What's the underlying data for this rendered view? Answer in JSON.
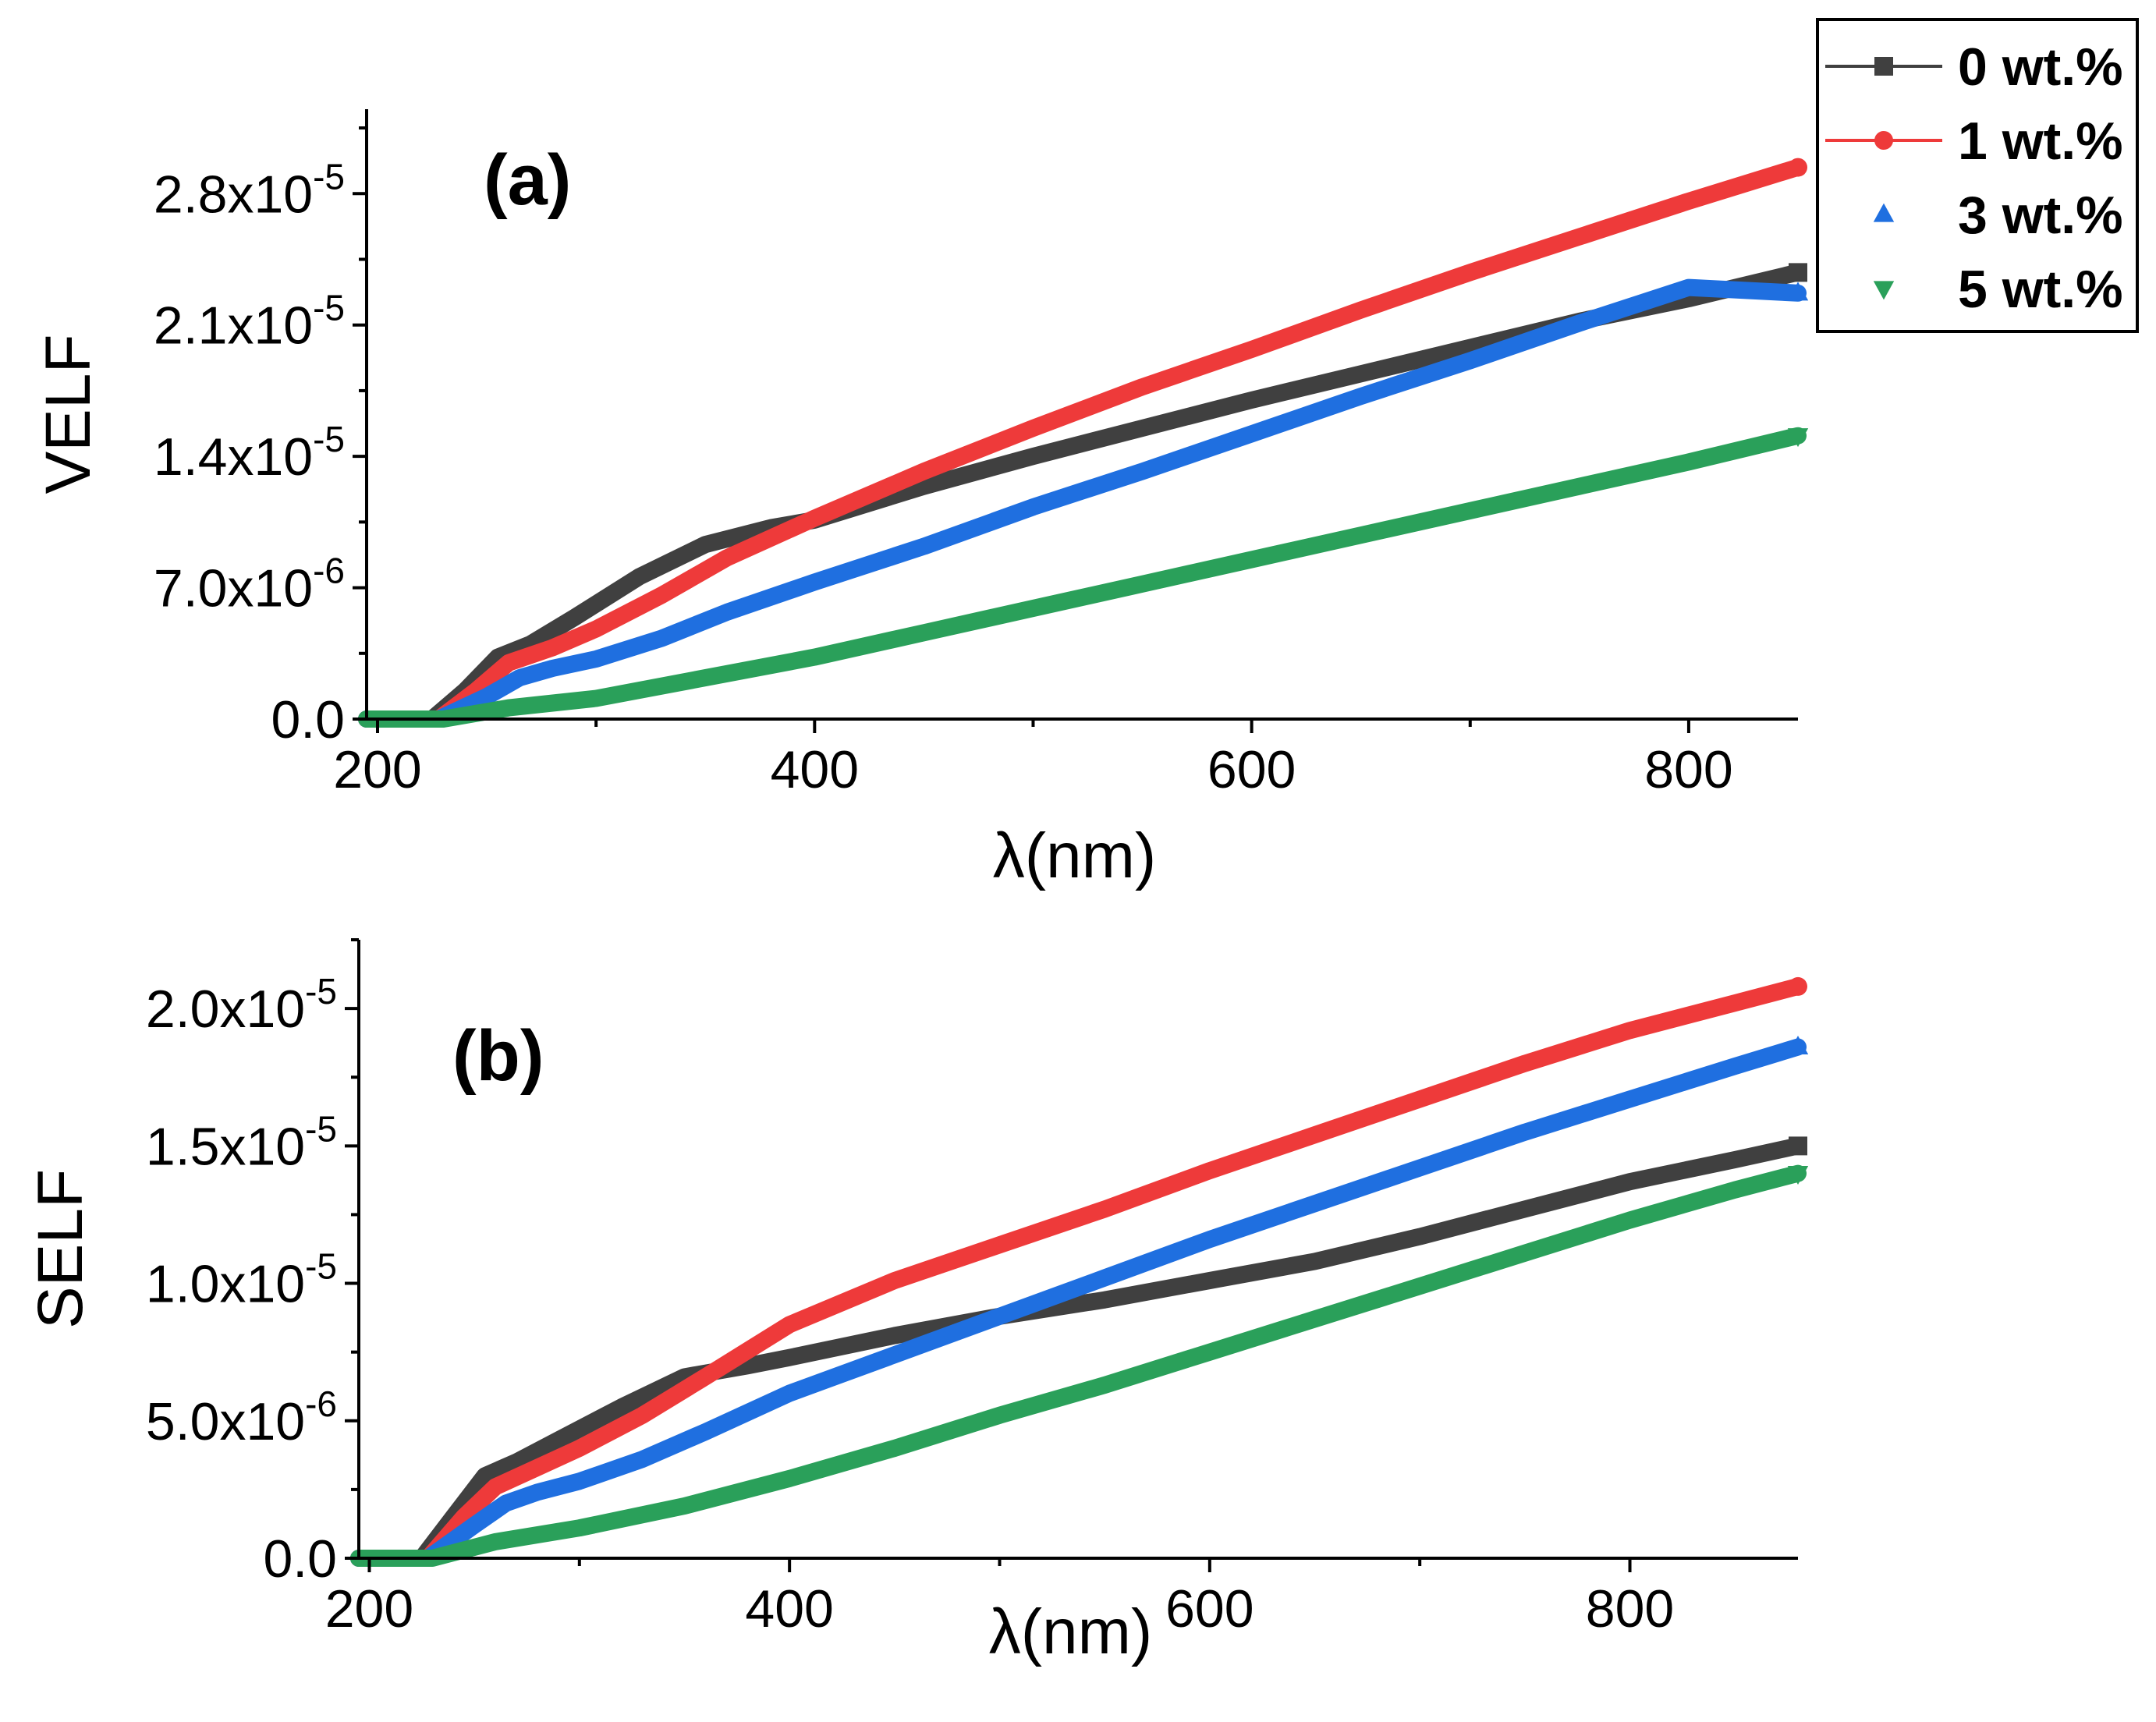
{
  "chart_data": [
    {
      "panel": "a",
      "type": "line",
      "panel_label": "(a)",
      "title": "",
      "xlabel": "λ(nm)",
      "ylabel": "VELF",
      "xlim": [
        195,
        850
      ],
      "ylim": [
        0,
        3.25e-05
      ],
      "xticks": [
        200,
        400,
        600,
        800
      ],
      "xtick_labels": [
        "200",
        "400",
        "600",
        "800"
      ],
      "ytick_labels": [
        {
          "value": 0,
          "mantissa": "0.0",
          "exp": ""
        },
        {
          "value": 7e-06,
          "mantissa": "7.0x10",
          "exp": "-6"
        },
        {
          "value": 1.4e-05,
          "mantissa": "1.4x10",
          "exp": "-5"
        },
        {
          "value": 2.1e-05,
          "mantissa": "2.1x10",
          "exp": "-5"
        },
        {
          "value": 2.8e-05,
          "mantissa": "2.8x10",
          "exp": "-5"
        }
      ],
      "series": [
        {
          "name": "0 wt.%",
          "color": "#404040",
          "marker": "square",
          "x": [
            195,
            225,
            240,
            255,
            270,
            290,
            320,
            350,
            380,
            400,
            450,
            500,
            550,
            600,
            650,
            700,
            750,
            800,
            850
          ],
          "y": [
            0,
            0,
            1.5e-06,
            3.3e-06,
            4e-06,
            5.4e-06,
            7.6e-06,
            9.3e-06,
            1.02e-05,
            1.06e-05,
            1.24e-05,
            1.4e-05,
            1.55e-05,
            1.7e-05,
            1.84e-05,
            1.98e-05,
            2.12e-05,
            2.24e-05,
            2.38e-05
          ]
        },
        {
          "name": "1 wt.%",
          "color": "#ee3a3a",
          "marker": "circle",
          "x": [
            195,
            228,
            245,
            260,
            280,
            300,
            330,
            360,
            400,
            450,
            500,
            550,
            600,
            650,
            700,
            750,
            800,
            850
          ],
          "y": [
            0,
            0,
            1.5e-06,
            3e-06,
            3.8e-06,
            4.8e-06,
            6.6e-06,
            8.6e-06,
            1.07e-05,
            1.32e-05,
            1.55e-05,
            1.77e-05,
            1.97e-05,
            2.18e-05,
            2.38e-05,
            2.57e-05,
            2.76e-05,
            2.94e-05
          ]
        },
        {
          "name": "3 wt.%",
          "color": "#1f6fe0",
          "marker": "triangle-up",
          "x": [
            195,
            228,
            250,
            265,
            280,
            300,
            330,
            360,
            400,
            450,
            500,
            550,
            600,
            650,
            700,
            750,
            800,
            850
          ],
          "y": [
            0,
            0,
            1.2e-06,
            2.2e-06,
            2.7e-06,
            3.2e-06,
            4.3e-06,
            5.7e-06,
            7.3e-06,
            9.2e-06,
            1.13e-05,
            1.32e-05,
            1.52e-05,
            1.72e-05,
            1.91e-05,
            2.11e-05,
            2.3e-05,
            2.27e-05
          ]
        },
        {
          "name": "5 wt.%",
          "color": "#2aa05a",
          "marker": "triangle-down",
          "x": [
            195,
            230,
            260,
            300,
            350,
            400,
            450,
            500,
            550,
            600,
            650,
            700,
            750,
            800,
            850
          ],
          "y": [
            0,
            0,
            6e-07,
            1.1e-06,
            2.2e-06,
            3.3e-06,
            4.6e-06,
            5.9e-06,
            7.2e-06,
            8.5e-06,
            9.8e-06,
            1.11e-05,
            1.24e-05,
            1.37e-05,
            1.51e-05
          ]
        }
      ]
    },
    {
      "panel": "b",
      "type": "line",
      "panel_label": "(b)",
      "title": "",
      "xlabel": "λ(nm)",
      "ylabel": "SELF",
      "xlim": [
        195,
        880
      ],
      "ylim": [
        0,
        2.25e-05
      ],
      "xticks": [
        200,
        400,
        600,
        800
      ],
      "xtick_labels": [
        "200",
        "400",
        "600",
        "800"
      ],
      "ytick_labels": [
        {
          "value": 0,
          "mantissa": "0.0",
          "exp": ""
        },
        {
          "value": 5e-06,
          "mantissa": "5.0x10",
          "exp": "-6"
        },
        {
          "value": 1e-05,
          "mantissa": "1.0x10",
          "exp": "-5"
        },
        {
          "value": 1.5e-05,
          "mantissa": "1.5x10",
          "exp": "-5"
        },
        {
          "value": 2e-05,
          "mantissa": "2.0x10",
          "exp": "-5"
        }
      ],
      "series": [
        {
          "name": "0 wt.%",
          "color": "#404040",
          "marker": "square",
          "x": [
            195,
            225,
            240,
            255,
            270,
            290,
            320,
            350,
            380,
            400,
            450,
            500,
            550,
            600,
            650,
            700,
            750,
            800,
            850,
            880
          ],
          "y": [
            0,
            0,
            1.5e-06,
            3e-06,
            3.5e-06,
            4.3e-06,
            5.5e-06,
            6.6e-06,
            7e-06,
            7.3e-06,
            8.1e-06,
            8.8e-06,
            9.4e-06,
            1.01e-05,
            1.08e-05,
            1.17e-05,
            1.27e-05,
            1.37e-05,
            1.45e-05,
            1.5e-05
          ]
        },
        {
          "name": "1 wt.%",
          "color": "#ee3a3a",
          "marker": "circle",
          "x": [
            195,
            228,
            245,
            260,
            280,
            300,
            330,
            360,
            400,
            450,
            500,
            550,
            600,
            650,
            700,
            750,
            800,
            850,
            880
          ],
          "y": [
            0,
            0,
            1.5e-06,
            2.6e-06,
            3.3e-06,
            4e-06,
            5.2e-06,
            6.6e-06,
            8.5e-06,
            1.01e-05,
            1.14e-05,
            1.27e-05,
            1.41e-05,
            1.54e-05,
            1.67e-05,
            1.8e-05,
            1.92e-05,
            2.02e-05,
            2.08e-05
          ]
        },
        {
          "name": "3 wt.%",
          "color": "#1f6fe0",
          "marker": "triangle-up",
          "x": [
            195,
            228,
            250,
            265,
            280,
            300,
            330,
            360,
            400,
            450,
            500,
            550,
            600,
            650,
            700,
            750,
            800,
            850,
            880
          ],
          "y": [
            0,
            0,
            1.2e-06,
            2e-06,
            2.4e-06,
            2.8e-06,
            3.6e-06,
            4.6e-06,
            6e-06,
            7.4e-06,
            8.8e-06,
            1.02e-05,
            1.16e-05,
            1.29e-05,
            1.42e-05,
            1.55e-05,
            1.67e-05,
            1.79e-05,
            1.86e-05
          ]
        },
        {
          "name": "5 wt.%",
          "color": "#2aa05a",
          "marker": "triangle-down",
          "x": [
            195,
            230,
            260,
            300,
            350,
            400,
            450,
            500,
            550,
            600,
            650,
            700,
            750,
            800,
            850,
            880
          ],
          "y": [
            0,
            0,
            6e-07,
            1.1e-06,
            1.9e-06,
            2.9e-06,
            4e-06,
            5.2e-06,
            6.3e-06,
            7.5e-06,
            8.7e-06,
            9.9e-06,
            1.11e-05,
            1.23e-05,
            1.34e-05,
            1.4e-05
          ]
        }
      ]
    }
  ],
  "legend": {
    "placement": "top-right",
    "entries": [
      {
        "label": "0 wt.%",
        "color": "#404040",
        "marker": "square",
        "line": true
      },
      {
        "label": "1 wt.%",
        "color": "#ee3a3a",
        "marker": "circle",
        "line": true
      },
      {
        "label": "3 wt.%",
        "color": "#1f6fe0",
        "marker": "triangle-up",
        "line": false
      },
      {
        "label": "5 wt.%",
        "color": "#2aa05a",
        "marker": "triangle-down",
        "line": false
      }
    ]
  }
}
